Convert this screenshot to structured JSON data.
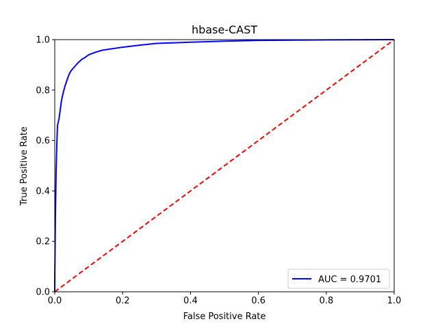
{
  "chart_data": {
    "type": "line",
    "title": "hbase-CAST",
    "xlabel": "False Positive Rate",
    "ylabel": "True Positive Rate",
    "xlim": [
      0,
      1
    ],
    "ylim": [
      0,
      1
    ],
    "xticks": [
      "0.0",
      "0.2",
      "0.4",
      "0.6",
      "0.8",
      "1.0"
    ],
    "yticks": [
      "0.0",
      "0.2",
      "0.4",
      "0.6",
      "0.8",
      "1.0"
    ],
    "grid": false,
    "legend_position": "lower-right",
    "series": [
      {
        "name": "AUC = 0.9701",
        "color": "#0000ff",
        "style": "solid",
        "x": [
          0.0,
          0.0,
          0.002,
          0.004,
          0.006,
          0.008,
          0.01,
          0.013,
          0.016,
          0.02,
          0.025,
          0.03,
          0.035,
          0.04,
          0.045,
          0.05,
          0.06,
          0.07,
          0.08,
          0.09,
          0.1,
          0.12,
          0.14,
          0.16,
          0.2,
          0.25,
          0.3,
          0.4,
          0.5,
          0.6,
          0.8,
          1.0
        ],
        "y": [
          0.0,
          0.04,
          0.3,
          0.48,
          0.58,
          0.66,
          0.67,
          0.69,
          0.72,
          0.76,
          0.79,
          0.815,
          0.835,
          0.855,
          0.87,
          0.88,
          0.895,
          0.91,
          0.922,
          0.93,
          0.94,
          0.95,
          0.958,
          0.962,
          0.97,
          0.978,
          0.985,
          0.99,
          0.994,
          0.997,
          0.999,
          1.0
        ]
      },
      {
        "name": "",
        "color": "#ff0000",
        "style": "dashed",
        "x": [
          0,
          1
        ],
        "y": [
          0,
          1
        ]
      }
    ]
  }
}
